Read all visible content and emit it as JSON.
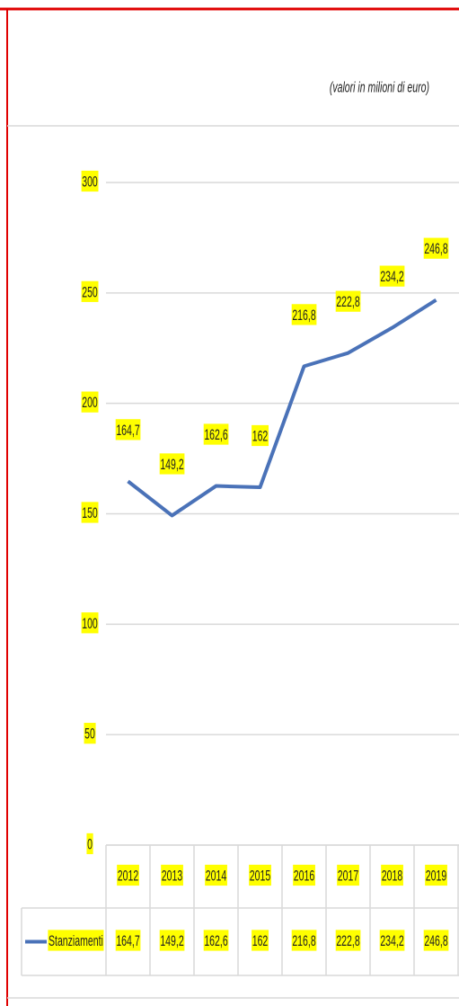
{
  "chart_data": {
    "type": "line",
    "note": "(valori in milioni di euro)",
    "categories": [
      "2012",
      "2013",
      "2014",
      "2015",
      "2016",
      "2017",
      "2018",
      "2019"
    ],
    "series": [
      {
        "name": "Stanziamenti",
        "color": "#4a72b8",
        "values": [
          164.7,
          149.2,
          162.6,
          162,
          216.8,
          222.8,
          234.2,
          246.8
        ],
        "value_labels": [
          "164,7",
          "149,2",
          "162,6",
          "162",
          "216,8",
          "222,8",
          "234,2",
          "246,8"
        ]
      }
    ],
    "ylim": [
      0,
      300
    ],
    "yticks": [
      0,
      50,
      100,
      150,
      200,
      250,
      300
    ],
    "grid": true
  }
}
